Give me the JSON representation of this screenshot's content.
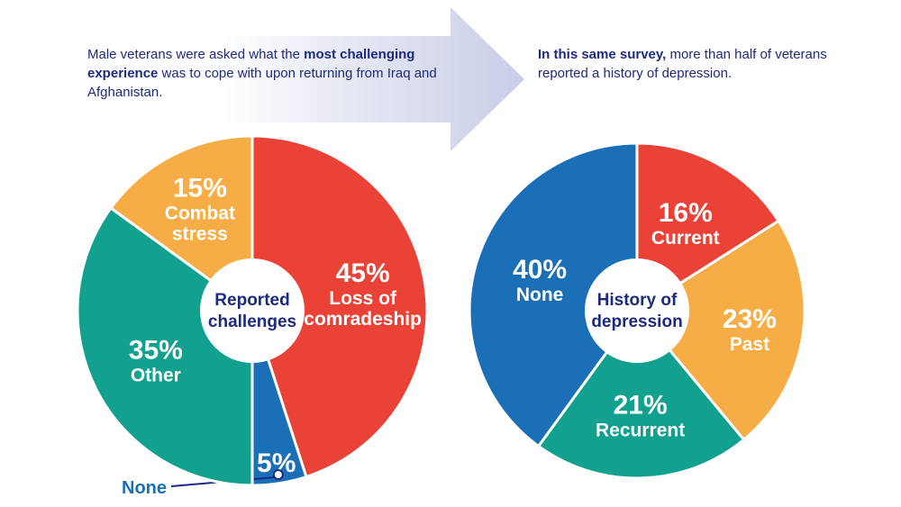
{
  "captions": {
    "left": {
      "pre": "Male veterans were asked what the ",
      "bold": "most challenging experience",
      "post": " was to cope with upon returning from Iraq and Afghanistan."
    },
    "right": {
      "bold": "In this same survey,",
      "post": " more than half of veterans reported a history of depression."
    }
  },
  "colors": {
    "red": "#ea4236",
    "orange": "#f6ad46",
    "teal": "#12a08f",
    "blue": "#1b6fb7",
    "navy": "#1c2a80",
    "arrow": "#d4d8ec"
  },
  "chart_data": [
    {
      "type": "pie",
      "center_label": [
        "Reported",
        "challenges"
      ],
      "slices": [
        {
          "pct_label": "45%",
          "label": [
            "Loss of",
            "comradeship"
          ],
          "value": 45,
          "color": "#ea4236"
        },
        {
          "pct_label": "5%",
          "label": [],
          "value": 5,
          "color": "#1b6fb7",
          "callout": "None"
        },
        {
          "pct_label": "35%",
          "label": [
            "Other"
          ],
          "value": 35,
          "color": "#12a08f"
        },
        {
          "pct_label": "15%",
          "label": [
            "Combat",
            "stress"
          ],
          "value": 15,
          "color": "#f6ad46"
        }
      ]
    },
    {
      "type": "pie",
      "center_label": [
        "History of",
        "depression"
      ],
      "slices": [
        {
          "pct_label": "16%",
          "label": [
            "Current"
          ],
          "value": 16,
          "color": "#ea4236"
        },
        {
          "pct_label": "23%",
          "label": [
            "Past"
          ],
          "value": 23,
          "color": "#f6ad46"
        },
        {
          "pct_label": "21%",
          "label": [
            "Recurrent"
          ],
          "value": 21,
          "color": "#12a08f"
        },
        {
          "pct_label": "40%",
          "label": [
            "None"
          ],
          "value": 40,
          "color": "#1b6fb7"
        }
      ]
    }
  ]
}
